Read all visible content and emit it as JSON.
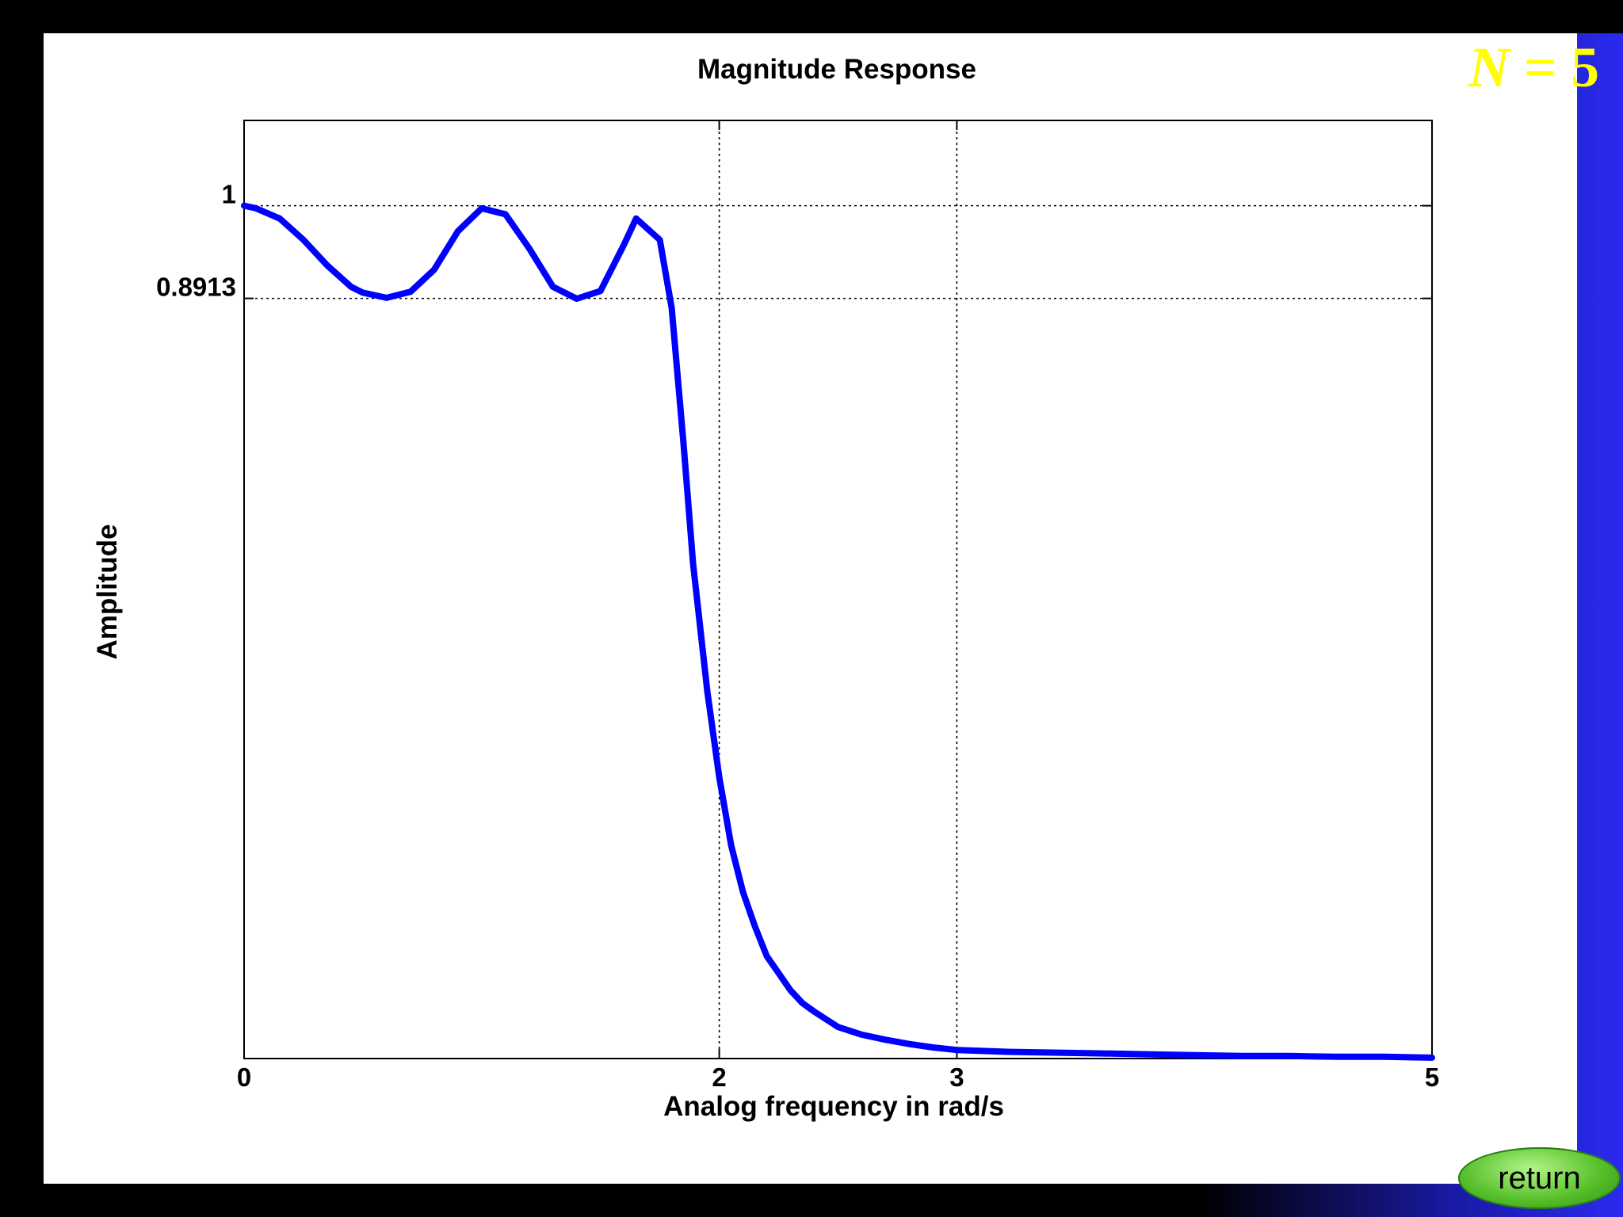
{
  "order_label": {
    "symbol": "N",
    "equals": "=",
    "value": "5"
  },
  "return_label": "return",
  "chart_data": {
    "type": "line",
    "title": "Magnitude Response",
    "xlabel": "Analog frequency in rad/s",
    "ylabel": "Amplitude",
    "xlim": [
      0,
      5
    ],
    "ylim": [
      0,
      1.1
    ],
    "xticks": [
      0,
      2,
      3,
      5
    ],
    "xtick_labels": [
      "0",
      "2",
      "3",
      "5"
    ],
    "yticks": [
      0.8913,
      1
    ],
    "ytick_labels": [
      "0.8913",
      "1"
    ],
    "grid": "dotted lines at x = 2, 3 and y = 0.8913, 1",
    "line_color": "#0000ff",
    "series": [
      {
        "x": [
          0,
          0.05,
          0.15,
          0.25,
          0.35,
          0.45,
          0.5,
          0.6,
          0.7,
          0.8,
          0.9,
          1.0,
          1.1,
          1.2,
          1.3,
          1.4,
          1.5,
          1.6,
          1.65,
          1.75,
          1.8,
          1.85,
          1.89,
          1.95,
          2.0,
          2.05,
          2.1,
          2.15,
          2.2,
          2.25,
          2.3,
          2.35,
          2.4,
          2.5,
          2.6,
          2.7,
          2.8,
          2.9,
          3.0,
          3.2,
          3.4,
          3.6,
          3.8,
          4.0,
          4.2,
          4.4,
          4.6,
          4.8,
          5.0
        ],
        "y": [
          1.0,
          0.997,
          0.985,
          0.96,
          0.93,
          0.905,
          0.898,
          0.892,
          0.899,
          0.925,
          0.97,
          0.997,
          0.99,
          0.95,
          0.905,
          0.891,
          0.9,
          0.955,
          0.985,
          0.96,
          0.88,
          0.72,
          0.58,
          0.43,
          0.33,
          0.25,
          0.195,
          0.155,
          0.12,
          0.1,
          0.08,
          0.065,
          0.055,
          0.037,
          0.028,
          0.022,
          0.017,
          0.013,
          0.01,
          0.008,
          0.007,
          0.006,
          0.005,
          0.004,
          0.003,
          0.003,
          0.002,
          0.002,
          0.001
        ]
      }
    ]
  }
}
